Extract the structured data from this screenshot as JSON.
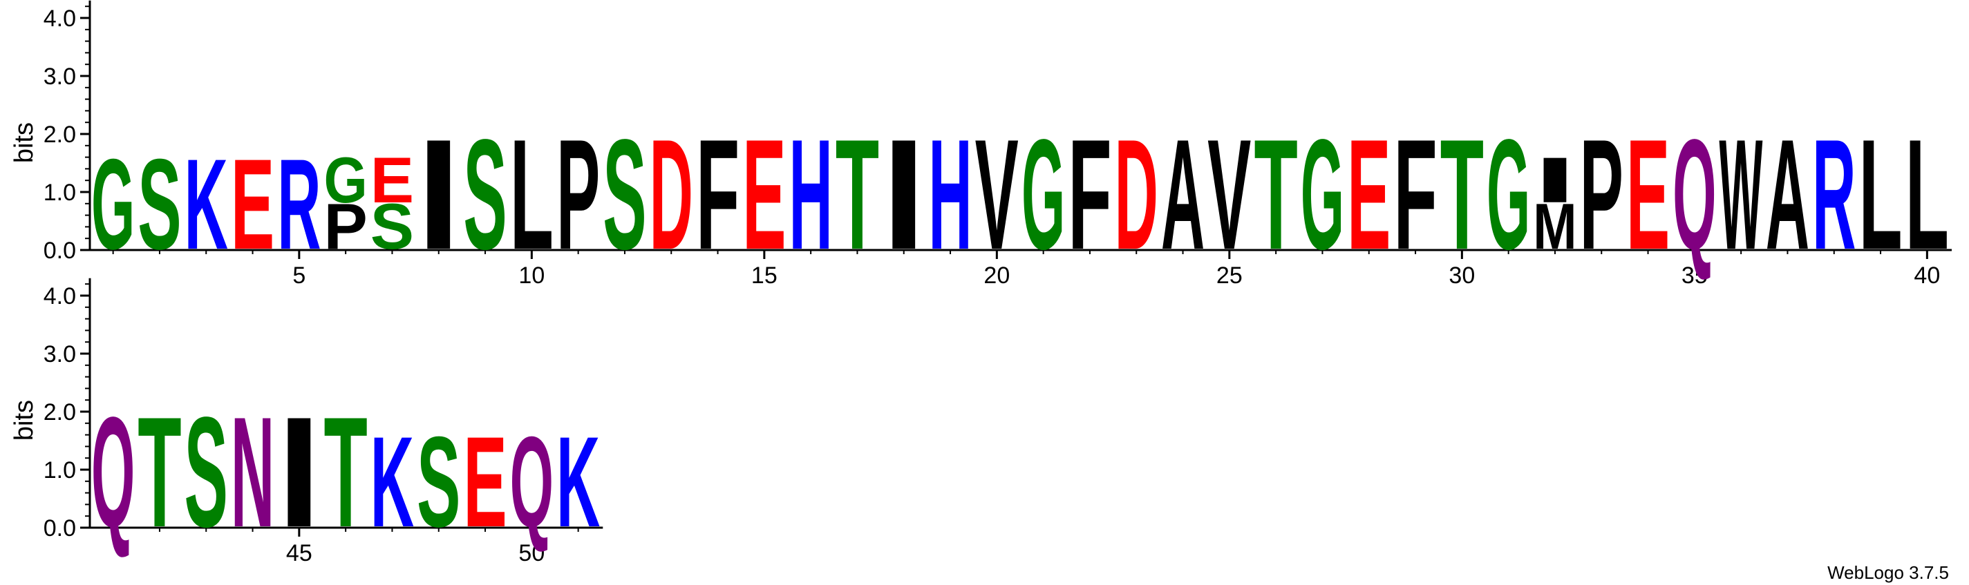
{
  "chart_data": {
    "type": "sequence-logo",
    "ylabel": "bits",
    "ylim": [
      0,
      4.3
    ],
    "yticks": [
      "0.0",
      "1.0",
      "2.0",
      "3.0",
      "4.0"
    ],
    "colors": {
      "hydrophobic": "#000000",
      "polar": "#008000",
      "basic": "#0000ff",
      "acidic": "#ff0000",
      "amide": "#800080"
    },
    "rows": [
      {
        "start": 1,
        "end": 40,
        "xticks": [
          "5",
          "10",
          "15",
          "20",
          "25",
          "30",
          "35",
          "40"
        ],
        "positions": [
          {
            "pos": 1,
            "stack": [
              {
                "letter": "G",
                "bits": 1.6,
                "class": "polar"
              }
            ]
          },
          {
            "pos": 2,
            "stack": [
              {
                "letter": "S",
                "bits": 1.6,
                "class": "polar"
              }
            ]
          },
          {
            "pos": 3,
            "stack": [
              {
                "letter": "K",
                "bits": 1.6,
                "class": "basic"
              }
            ]
          },
          {
            "pos": 4,
            "stack": [
              {
                "letter": "E",
                "bits": 1.6,
                "class": "acidic"
              }
            ]
          },
          {
            "pos": 5,
            "stack": [
              {
                "letter": "R",
                "bits": 1.6,
                "class": "basic"
              }
            ]
          },
          {
            "pos": 6,
            "stack": [
              {
                "letter": "P",
                "bits": 0.8,
                "class": "hydrophobic"
              },
              {
                "letter": "G",
                "bits": 0.8,
                "class": "polar"
              }
            ]
          },
          {
            "pos": 7,
            "stack": [
              {
                "letter": "S",
                "bits": 0.8,
                "class": "polar"
              },
              {
                "letter": "E",
                "bits": 0.8,
                "class": "acidic"
              }
            ]
          },
          {
            "pos": 8,
            "stack": [
              {
                "letter": "I",
                "bits": 1.95,
                "class": "hydrophobic"
              }
            ]
          },
          {
            "pos": 9,
            "stack": [
              {
                "letter": "S",
                "bits": 1.95,
                "class": "polar"
              }
            ]
          },
          {
            "pos": 10,
            "stack": [
              {
                "letter": "L",
                "bits": 1.95,
                "class": "hydrophobic"
              }
            ]
          },
          {
            "pos": 11,
            "stack": [
              {
                "letter": "P",
                "bits": 1.95,
                "class": "hydrophobic"
              }
            ]
          },
          {
            "pos": 12,
            "stack": [
              {
                "letter": "S",
                "bits": 1.95,
                "class": "polar"
              }
            ]
          },
          {
            "pos": 13,
            "stack": [
              {
                "letter": "D",
                "bits": 1.95,
                "class": "acidic"
              }
            ]
          },
          {
            "pos": 14,
            "stack": [
              {
                "letter": "F",
                "bits": 1.95,
                "class": "hydrophobic"
              }
            ]
          },
          {
            "pos": 15,
            "stack": [
              {
                "letter": "E",
                "bits": 1.95,
                "class": "acidic"
              }
            ]
          },
          {
            "pos": 16,
            "stack": [
              {
                "letter": "H",
                "bits": 1.95,
                "class": "basic"
              }
            ]
          },
          {
            "pos": 17,
            "stack": [
              {
                "letter": "T",
                "bits": 1.95,
                "class": "polar"
              }
            ]
          },
          {
            "pos": 18,
            "stack": [
              {
                "letter": "I",
                "bits": 1.95,
                "class": "hydrophobic"
              }
            ]
          },
          {
            "pos": 19,
            "stack": [
              {
                "letter": "H",
                "bits": 1.95,
                "class": "basic"
              }
            ]
          },
          {
            "pos": 20,
            "stack": [
              {
                "letter": "V",
                "bits": 1.95,
                "class": "hydrophobic"
              }
            ]
          },
          {
            "pos": 21,
            "stack": [
              {
                "letter": "G",
                "bits": 1.95,
                "class": "polar"
              }
            ]
          },
          {
            "pos": 22,
            "stack": [
              {
                "letter": "F",
                "bits": 1.95,
                "class": "hydrophobic"
              }
            ]
          },
          {
            "pos": 23,
            "stack": [
              {
                "letter": "D",
                "bits": 1.95,
                "class": "acidic"
              }
            ]
          },
          {
            "pos": 24,
            "stack": [
              {
                "letter": "A",
                "bits": 1.95,
                "class": "hydrophobic"
              }
            ]
          },
          {
            "pos": 25,
            "stack": [
              {
                "letter": "V",
                "bits": 1.95,
                "class": "hydrophobic"
              }
            ]
          },
          {
            "pos": 26,
            "stack": [
              {
                "letter": "T",
                "bits": 1.95,
                "class": "polar"
              }
            ]
          },
          {
            "pos": 27,
            "stack": [
              {
                "letter": "G",
                "bits": 1.95,
                "class": "polar"
              }
            ]
          },
          {
            "pos": 28,
            "stack": [
              {
                "letter": "E",
                "bits": 1.95,
                "class": "acidic"
              }
            ]
          },
          {
            "pos": 29,
            "stack": [
              {
                "letter": "F",
                "bits": 1.95,
                "class": "hydrophobic"
              }
            ]
          },
          {
            "pos": 30,
            "stack": [
              {
                "letter": "T",
                "bits": 1.95,
                "class": "polar"
              }
            ]
          },
          {
            "pos": 31,
            "stack": [
              {
                "letter": "G",
                "bits": 1.95,
                "class": "polar"
              }
            ]
          },
          {
            "pos": 32,
            "stack": [
              {
                "letter": "M",
                "bits": 0.8,
                "class": "hydrophobic"
              },
              {
                "letter": "I",
                "bits": 0.8,
                "class": "hydrophobic"
              }
            ]
          },
          {
            "pos": 33,
            "stack": [
              {
                "letter": "P",
                "bits": 1.95,
                "class": "hydrophobic"
              }
            ]
          },
          {
            "pos": 34,
            "stack": [
              {
                "letter": "E",
                "bits": 1.95,
                "class": "acidic"
              }
            ]
          },
          {
            "pos": 35,
            "stack": [
              {
                "letter": "Q",
                "bits": 1.95,
                "class": "amide"
              }
            ]
          },
          {
            "pos": 36,
            "stack": [
              {
                "letter": "W",
                "bits": 1.95,
                "class": "hydrophobic"
              }
            ]
          },
          {
            "pos": 37,
            "stack": [
              {
                "letter": "A",
                "bits": 1.95,
                "class": "hydrophobic"
              }
            ]
          },
          {
            "pos": 38,
            "stack": [
              {
                "letter": "R",
                "bits": 1.95,
                "class": "basic"
              }
            ]
          },
          {
            "pos": 39,
            "stack": [
              {
                "letter": "L",
                "bits": 1.95,
                "class": "hydrophobic"
              }
            ]
          },
          {
            "pos": 40,
            "stack": [
              {
                "letter": "L",
                "bits": 1.95,
                "class": "hydrophobic"
              }
            ]
          }
        ]
      },
      {
        "start": 41,
        "end": 51,
        "xticks": [
          "45",
          "50"
        ],
        "positions": [
          {
            "pos": 41,
            "stack": [
              {
                "letter": "Q",
                "bits": 1.95,
                "class": "amide"
              }
            ]
          },
          {
            "pos": 42,
            "stack": [
              {
                "letter": "T",
                "bits": 1.95,
                "class": "polar"
              }
            ]
          },
          {
            "pos": 43,
            "stack": [
              {
                "letter": "S",
                "bits": 1.95,
                "class": "polar"
              }
            ]
          },
          {
            "pos": 44,
            "stack": [
              {
                "letter": "N",
                "bits": 1.95,
                "class": "amide"
              }
            ]
          },
          {
            "pos": 45,
            "stack": [
              {
                "letter": "I",
                "bits": 1.95,
                "class": "hydrophobic"
              }
            ]
          },
          {
            "pos": 46,
            "stack": [
              {
                "letter": "T",
                "bits": 1.95,
                "class": "polar"
              }
            ]
          },
          {
            "pos": 47,
            "stack": [
              {
                "letter": "K",
                "bits": 1.6,
                "class": "basic"
              }
            ]
          },
          {
            "pos": 48,
            "stack": [
              {
                "letter": "S",
                "bits": 1.6,
                "class": "polar"
              }
            ]
          },
          {
            "pos": 49,
            "stack": [
              {
                "letter": "E",
                "bits": 1.6,
                "class": "acidic"
              }
            ]
          },
          {
            "pos": 50,
            "stack": [
              {
                "letter": "Q",
                "bits": 1.6,
                "class": "amide"
              }
            ]
          },
          {
            "pos": 51,
            "stack": [
              {
                "letter": "K",
                "bits": 1.6,
                "class": "basic"
              }
            ]
          }
        ]
      }
    ]
  },
  "credit": "WebLogo 3.7.5"
}
